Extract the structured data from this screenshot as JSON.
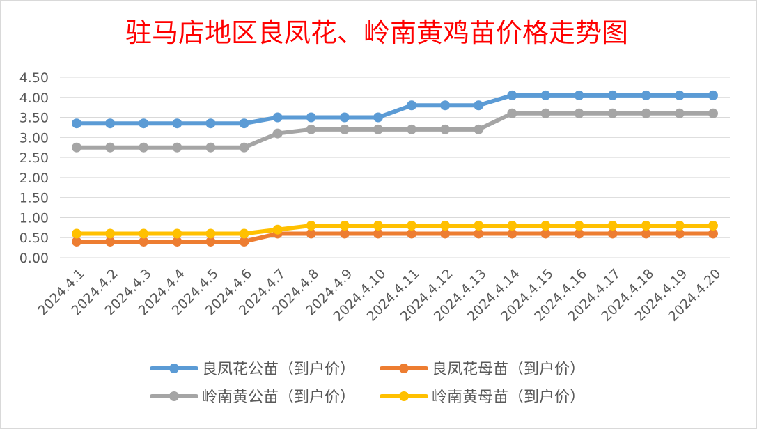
{
  "chart_data": {
    "type": "line",
    "title": "驻马店地区良凤花、岭南黄鸡苗价格走势图",
    "xlabel": "",
    "ylabel": "",
    "categories": [
      "2024.4.1",
      "2024.4.2",
      "2024.4.3",
      "2024.4.4",
      "2024.4.5",
      "2024.4.6",
      "2024.4.7",
      "2024.4.8",
      "2024.4.9",
      "2024.4.10",
      "2024.4.11",
      "2024.4.12",
      "2024.4.13",
      "2024.4.14",
      "2024.4.15",
      "2024.4.16",
      "2024.4.17",
      "2024.4.18",
      "2024.4.19",
      "2024.4.20"
    ],
    "ylim": [
      0,
      4.5
    ],
    "yticks": [
      "0.00",
      "0.50",
      "1.00",
      "1.50",
      "2.00",
      "2.50",
      "3.00",
      "3.50",
      "4.00",
      "4.50"
    ],
    "grid": true,
    "legend_position": "bottom",
    "series": [
      {
        "name": "良凤花公苗（到户价）",
        "color": "#5b9bd5",
        "values": [
          3.35,
          3.35,
          3.35,
          3.35,
          3.35,
          3.35,
          3.5,
          3.5,
          3.5,
          3.5,
          3.8,
          3.8,
          3.8,
          4.05,
          4.05,
          4.05,
          4.05,
          4.05,
          4.05,
          4.05
        ]
      },
      {
        "name": "良凤花母苗（到户价）",
        "color": "#ed7d31",
        "values": [
          0.4,
          0.4,
          0.4,
          0.4,
          0.4,
          0.4,
          0.6,
          0.6,
          0.6,
          0.6,
          0.6,
          0.6,
          0.6,
          0.6,
          0.6,
          0.6,
          0.6,
          0.6,
          0.6,
          0.6
        ]
      },
      {
        "name": "岭南黄公苗（到户价）",
        "color": "#a5a5a5",
        "values": [
          2.75,
          2.75,
          2.75,
          2.75,
          2.75,
          2.75,
          3.1,
          3.2,
          3.2,
          3.2,
          3.2,
          3.2,
          3.2,
          3.6,
          3.6,
          3.6,
          3.6,
          3.6,
          3.6,
          3.6
        ]
      },
      {
        "name": "岭南黄母苗（到户价）",
        "color": "#ffc000",
        "values": [
          0.6,
          0.6,
          0.6,
          0.6,
          0.6,
          0.6,
          0.7,
          0.8,
          0.8,
          0.8,
          0.8,
          0.8,
          0.8,
          0.8,
          0.8,
          0.8,
          0.8,
          0.8,
          0.8,
          0.8
        ]
      }
    ]
  }
}
